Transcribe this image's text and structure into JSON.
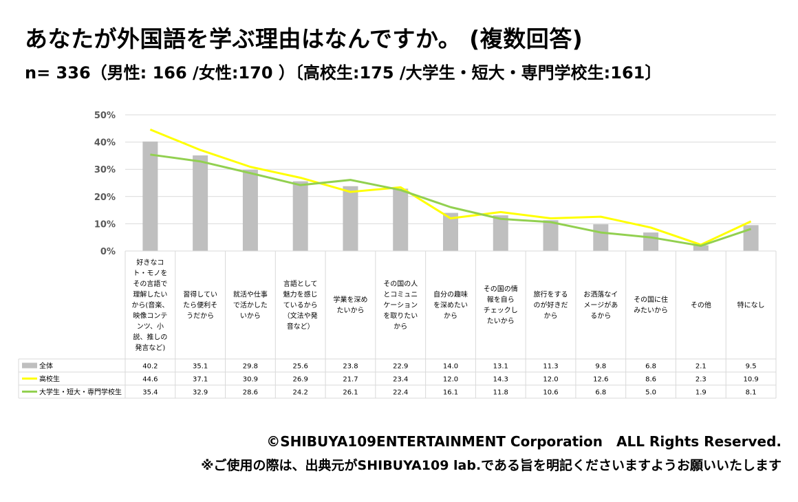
{
  "header": {
    "title": "あなたが外国語を学ぶ理由はなんですか。 (複数回答)",
    "subtitle": "n= 336（男性: 166 /女性:170 ）〔高校生:175 /大学生・短大・専門学校生:161〕"
  },
  "chart_data": {
    "type": "bar",
    "title": "あなたが外国語を学ぶ理由はなんですか。 (複数回答)",
    "ylim": [
      0,
      50
    ],
    "yticks": [
      "0%",
      "10%",
      "20%",
      "30%",
      "40%",
      "50%"
    ],
    "categories": [
      [
        "好きなコ",
        "ト・モノを",
        "その言語で",
        "理解したい",
        "から(音楽、",
        "映像コンテ",
        "ンツ、小",
        "説、推しの",
        "発言など)"
      ],
      [
        "習得してい",
        "たら便利そ",
        "うだから"
      ],
      [
        "就活や仕事",
        "で活かした",
        "いから"
      ],
      [
        "言語として",
        "魅力を感じ",
        "ているから",
        "（文法や発",
        "音など）"
      ],
      [
        "学業を深め",
        "たいから"
      ],
      [
        "その国の人",
        "とコミュニ",
        "ケーション",
        "を取りたい",
        "から"
      ],
      [
        "自分の趣味",
        "を深めたい",
        "から"
      ],
      [
        "その国の情",
        "報を自ら",
        "チェックし",
        "たいから"
      ],
      [
        "旅行をする",
        "のが好きだ",
        "から"
      ],
      [
        "お洒落なイ",
        "メージがあ",
        "るから"
      ],
      [
        "その国に住",
        "みたいから"
      ],
      [
        "その他"
      ],
      [
        "特になし"
      ]
    ],
    "series": [
      {
        "name": "全体",
        "type": "bar",
        "color": "#BFBFBF",
        "values": [
          40.2,
          35.1,
          29.8,
          25.6,
          23.8,
          22.9,
          14.0,
          13.1,
          11.3,
          9.8,
          6.8,
          2.1,
          9.5
        ],
        "labels": [
          "40.2",
          "35.1",
          "29.8",
          "25.6",
          "23.8",
          "22.9",
          "14.0",
          "13.1",
          "11.3",
          "9.8",
          "6.8",
          "2.1",
          "9.5"
        ]
      },
      {
        "name": "高校生",
        "type": "line",
        "color": "#FFFF00",
        "values": [
          44.6,
          37.1,
          30.9,
          26.9,
          21.7,
          23.4,
          12.0,
          14.3,
          12.0,
          12.6,
          8.6,
          2.3,
          10.9
        ],
        "labels": [
          "44.6",
          "37.1",
          "30.9",
          "26.9",
          "21.7",
          "23.4",
          "12.0",
          "14.3",
          "12.0",
          "12.6",
          "8.6",
          "2.3",
          "10.9"
        ]
      },
      {
        "name": "大学生・短大・専門学校生",
        "type": "line",
        "color": "#92D050",
        "values": [
          35.4,
          32.9,
          28.6,
          24.2,
          26.1,
          22.4,
          16.1,
          11.8,
          10.6,
          6.8,
          5.0,
          1.9,
          8.1
        ],
        "labels": [
          "35.4",
          "32.9",
          "28.6",
          "24.2",
          "26.1",
          "22.4",
          "16.1",
          "11.8",
          "10.6",
          "6.8",
          "5.0",
          "1.9",
          "8.1"
        ]
      }
    ]
  },
  "footer": {
    "copyright": "©SHIBUYA109ENTERTAINMENT Corporation　ALL Rights Reserved.",
    "note": "※ご使用の際は、出典元がSHIBUYA109 lab.である旨を明記くださいますようお願いいたします"
  }
}
